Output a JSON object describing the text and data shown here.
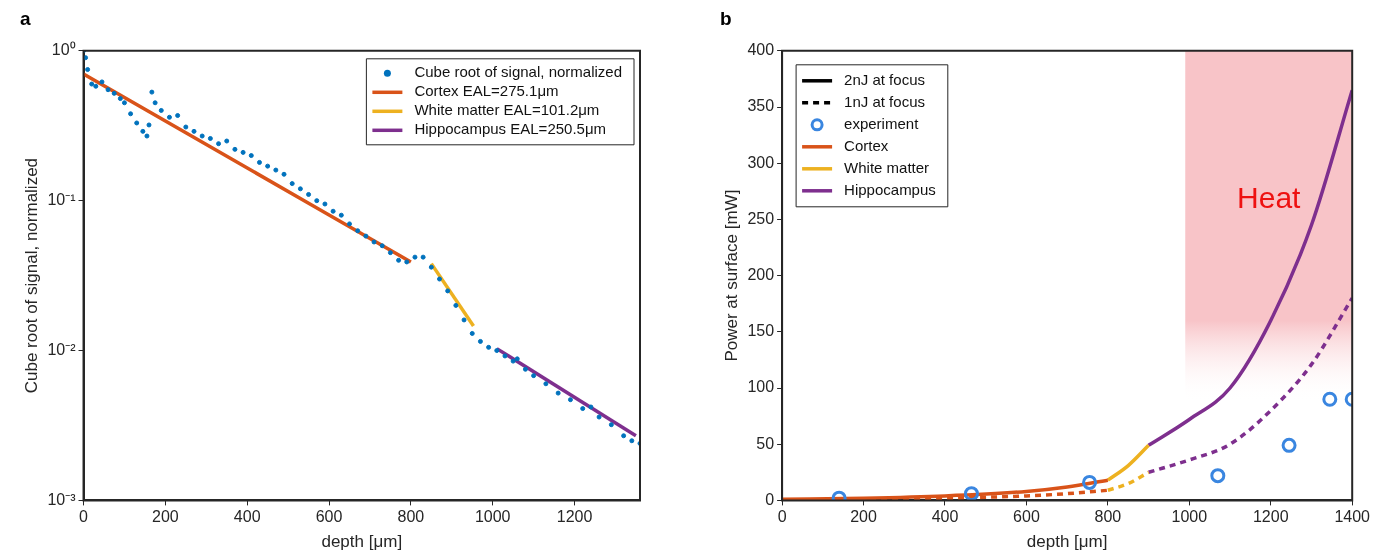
{
  "chart_data": [
    {
      "type": "scatter",
      "title": "a",
      "xlabel": "depth [μm]",
      "ylabel": "Cube root of signal, normalized",
      "log": "y",
      "xlim": [
        0,
        1360
      ],
      "xticks": [
        0,
        200,
        400,
        600,
        800,
        1000,
        1200
      ],
      "ylim": [
        0.001,
        1
      ],
      "yticks": [
        {
          "value": 0.001,
          "label": "10⁻³"
        },
        {
          "value": 0.01,
          "label": "10⁻²"
        },
        {
          "value": 0.1,
          "label": "10⁻¹"
        },
        {
          "value": 1,
          "label": "10⁰"
        }
      ],
      "legend": "top right",
      "grid": false,
      "series": [
        {
          "name": "Cube root of signal, normalized",
          "marker": "circle",
          "color": "#0072bd",
          "x": [
            0,
            5,
            10,
            20,
            30,
            45,
            60,
            75,
            90,
            100,
            115,
            130,
            145,
            155,
            160,
            167,
            175,
            190,
            210,
            230,
            250,
            270,
            290,
            310,
            330,
            350,
            370,
            390,
            410,
            430,
            450,
            470,
            490,
            510,
            530,
            550,
            570,
            590,
            610,
            630,
            650,
            670,
            690,
            710,
            730,
            750,
            770,
            790,
            810,
            830,
            850,
            870,
            890,
            910,
            930,
            950,
            970,
            990,
            1010,
            1030,
            1050,
            1060,
            1080,
            1100,
            1130,
            1160,
            1190,
            1220,
            1240,
            1260,
            1290,
            1320,
            1340,
            1360
          ],
          "values": [
            1.0,
            0.9,
            0.75,
            0.6,
            0.58,
            0.62,
            0.55,
            0.52,
            0.48,
            0.45,
            0.38,
            0.33,
            0.29,
            0.27,
            0.32,
            0.53,
            0.45,
            0.4,
            0.36,
            0.37,
            0.31,
            0.29,
            0.27,
            0.26,
            0.24,
            0.25,
            0.22,
            0.21,
            0.2,
            0.18,
            0.17,
            0.16,
            0.15,
            0.13,
            0.12,
            0.11,
            0.1,
            0.095,
            0.085,
            0.08,
            0.07,
            0.063,
            0.058,
            0.053,
            0.05,
            0.045,
            0.04,
            0.039,
            0.042,
            0.042,
            0.036,
            0.03,
            0.025,
            0.02,
            0.016,
            0.013,
            0.0115,
            0.0105,
            0.01,
            0.0092,
            0.0085,
            0.0088,
            0.0075,
            0.0068,
            0.006,
            0.0052,
            0.0047,
            0.0041,
            0.0042,
            0.0036,
            0.0032,
            0.0027,
            0.0025,
            0.0024
          ]
        },
        {
          "name": "Cortex EAL=275.1μm",
          "type": "line",
          "marker": "none",
          "color": "#d95319",
          "x": [
            0,
            800
          ],
          "values": [
            0.7,
            0.039
          ]
        },
        {
          "name": "White matter EAL=101.2μm",
          "type": "line",
          "marker": "none",
          "color": "#edb120",
          "x": [
            850,
            953
          ],
          "values": [
            0.038,
            0.0146
          ]
        },
        {
          "name": "Hippocampus EAL=250.5μm",
          "type": "line",
          "marker": "none",
          "color": "#7e2f8e",
          "x": [
            1010,
            1350
          ],
          "values": [
            0.0103,
            0.0027
          ]
        }
      ]
    },
    {
      "type": "line",
      "title": "b",
      "xlabel": "depth [μm]",
      "ylabel": "Power at surface [mW]",
      "xlim": [
        0,
        1400
      ],
      "xticks": [
        0,
        200,
        400,
        600,
        800,
        1000,
        1200,
        1400
      ],
      "ylim": [
        0,
        400
      ],
      "yticks": [
        0,
        50,
        100,
        150,
        200,
        250,
        300,
        350,
        400
      ],
      "legend": "top left",
      "grid": false,
      "bands": [
        {
          "axis": "x",
          "from": 990,
          "to": 1400,
          "label": "Heat",
          "color": "#f8c4c8"
        }
      ],
      "series": [
        {
          "name": "2nJ at focus",
          "marker": "none",
          "line_style": "solid",
          "color": "#000000"
        },
        {
          "name": "1nJ at focus",
          "marker": "none",
          "line_style": "dashed",
          "color": "#000000"
        },
        {
          "name": "experiment",
          "type": "scatter",
          "marker": "circle",
          "color": "#3a86e0",
          "x": [
            140,
            465,
            755,
            1070,
            1245,
            1345,
            1400
          ],
          "values": [
            2,
            6,
            16,
            22,
            49,
            90,
            90
          ]
        },
        {
          "name": "Cortex",
          "marker": "none",
          "line_style": "solid",
          "color": "#d95319",
          "x": [
            0,
            200,
            400,
            600,
            700,
            800
          ],
          "values": [
            1,
            2,
            4,
            8,
            12,
            18
          ]
        },
        {
          "name": "White matter",
          "marker": "none",
          "line_style": "solid",
          "color": "#edb120",
          "x": [
            800,
            850,
            900
          ],
          "values": [
            18,
            31,
            49
          ]
        },
        {
          "name": "Hippocampus",
          "marker": "none",
          "line_style": "solid",
          "color": "#7e2f8e",
          "x": [
            900,
            1000,
            1100,
            1200,
            1300,
            1400
          ],
          "values": [
            49,
            72,
            100,
            160,
            245,
            365
          ]
        },
        {
          "marker": "none",
          "line_style": "dashed",
          "color": "#d95319",
          "x": [
            0,
            200,
            400,
            600,
            700,
            800
          ],
          "values": [
            0,
            1,
            2,
            4,
            6,
            9
          ]
        },
        {
          "marker": "none",
          "line_style": "dashed",
          "color": "#edb120",
          "x": [
            800,
            850,
            900
          ],
          "values": [
            9,
            15,
            25
          ]
        },
        {
          "marker": "none",
          "line_style": "dashed",
          "color": "#7e2f8e",
          "x": [
            900,
            1000,
            1100,
            1200,
            1300,
            1400
          ],
          "values": [
            25,
            36,
            50,
            80,
            121,
            180
          ]
        }
      ]
    }
  ]
}
